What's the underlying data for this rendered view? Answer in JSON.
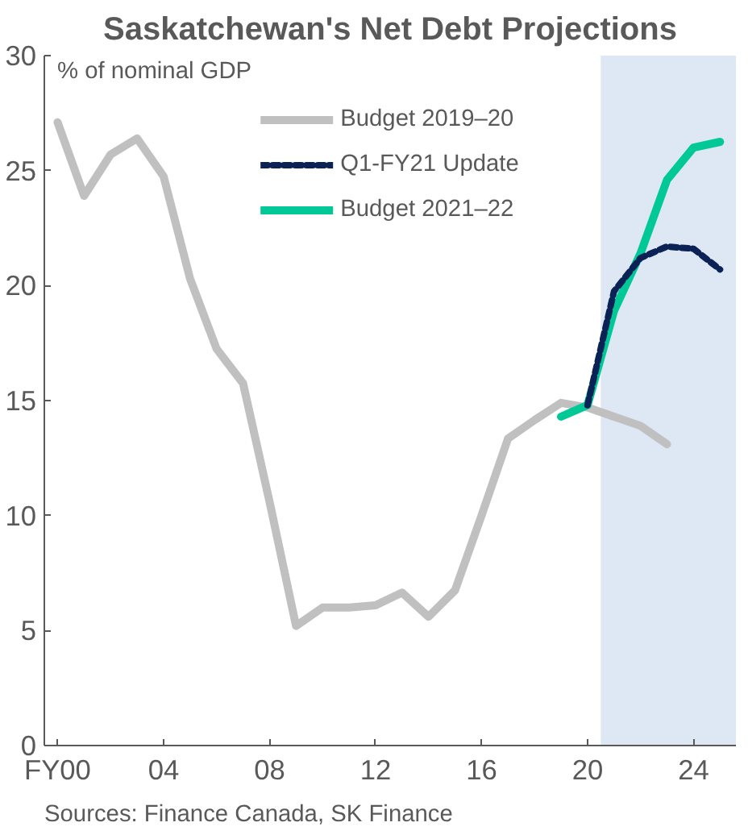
{
  "chart_data": {
    "type": "line",
    "title": "Saskatchewan's Net Debt Projections",
    "ylabel": "% of nominal GDP",
    "annotations": [
      "Sources: Finance Canada, SK Finance"
    ],
    "x": [
      0,
      1,
      2,
      3,
      4,
      5,
      6,
      7,
      8,
      9,
      10,
      11,
      12,
      13,
      14,
      15,
      16,
      17,
      18,
      19,
      20,
      21,
      22,
      23,
      24,
      25
    ],
    "series": [
      {
        "name": "Budget 2019–20",
        "color": "#c0c0c0",
        "line_style": "solid",
        "values": [
          27.1,
          23.9,
          25.7,
          26.4,
          24.75,
          20.3,
          17.25,
          15.75,
          10.6,
          5.2,
          6.0,
          6.0,
          6.1,
          6.65,
          5.6,
          6.75,
          10.0,
          13.35,
          14.15,
          14.9,
          14.7,
          14.3,
          13.9,
          13.1,
          null,
          null
        ]
      },
      {
        "name": "Q1-FY21 Update",
        "color": "#0b2257",
        "line_style": "dashed",
        "values": [
          null,
          null,
          null,
          null,
          null,
          null,
          null,
          null,
          null,
          null,
          null,
          null,
          null,
          null,
          null,
          null,
          null,
          null,
          null,
          null,
          14.8,
          19.75,
          21.2,
          21.7,
          21.6,
          20.7
        ]
      },
      {
        "name": "Budget 2021–22",
        "color": "#00c896",
        "line_style": "solid",
        "values": [
          null,
          null,
          null,
          null,
          null,
          null,
          null,
          null,
          null,
          null,
          null,
          null,
          null,
          null,
          null,
          null,
          null,
          null,
          null,
          14.3,
          14.8,
          18.9,
          21.4,
          24.6,
          26.0,
          26.25
        ]
      }
    ],
    "xlim": [
      -0.5,
      25.6
    ],
    "xticks": [
      {
        "value": 0,
        "label": "FY00"
      },
      {
        "value": 4,
        "label": "04"
      },
      {
        "value": 8,
        "label": "08"
      },
      {
        "value": 12,
        "label": "12"
      },
      {
        "value": 16,
        "label": "16"
      },
      {
        "value": 20,
        "label": "20"
      },
      {
        "value": 24,
        "label": "24"
      }
    ],
    "ylim": [
      0,
      30
    ],
    "yticks": [
      0,
      5,
      10,
      15,
      20,
      25,
      30
    ],
    "bands": [
      {
        "axis": "x",
        "from": 20.5,
        "to": 25.6,
        "color": "#dde8f4"
      }
    ],
    "grid": false,
    "legend": "top"
  }
}
